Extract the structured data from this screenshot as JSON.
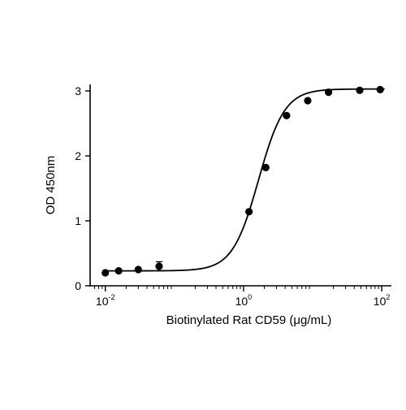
{
  "chart_data": {
    "type": "scatter",
    "title": "",
    "xlabel": "Biotinylated Rat CD59 (μg/mL)",
    "ylabel": "OD 450nm",
    "x_scale": "log10",
    "xlim": [
      0.006,
      140
    ],
    "ylim": [
      0,
      3.1
    ],
    "x_ticks": [
      {
        "value": 0.01,
        "base": "10",
        "exp": "-2"
      },
      {
        "value": 1,
        "base": "10",
        "exp": "0"
      },
      {
        "value": 100,
        "base": "10",
        "exp": "2"
      }
    ],
    "y_ticks": [
      {
        "value": 0,
        "label": "0"
      },
      {
        "value": 1,
        "label": "1"
      },
      {
        "value": 2,
        "label": "2"
      },
      {
        "value": 3,
        "label": "3"
      }
    ],
    "grid": false,
    "legend": "none",
    "colors": {
      "points": "#000000",
      "curve": "#000000",
      "axes": "#000000"
    },
    "points": [
      {
        "x": 0.01,
        "y": 0.2,
        "err": 0.02
      },
      {
        "x": 0.0156,
        "y": 0.23,
        "err": 0.02
      },
      {
        "x": 0.03,
        "y": 0.25,
        "err": 0.02
      },
      {
        "x": 0.06,
        "y": 0.3,
        "err": 0.07
      },
      {
        "x": 1.2,
        "y": 1.14,
        "err": 0.03
      },
      {
        "x": 2.1,
        "y": 1.82,
        "err": 0.03
      },
      {
        "x": 4.2,
        "y": 2.62,
        "err": 0.02
      },
      {
        "x": 8.5,
        "y": 2.85,
        "err": 0.02
      },
      {
        "x": 17,
        "y": 2.98,
        "err": 0.02
      },
      {
        "x": 48,
        "y": 3.01,
        "err": 0.02
      },
      {
        "x": 95,
        "y": 3.02,
        "err": 0.02
      }
    ],
    "fit_curve": {
      "model": "4PL",
      "bottom": 0.23,
      "top": 3.03,
      "ec50": 1.65,
      "hill": 2.3
    }
  }
}
